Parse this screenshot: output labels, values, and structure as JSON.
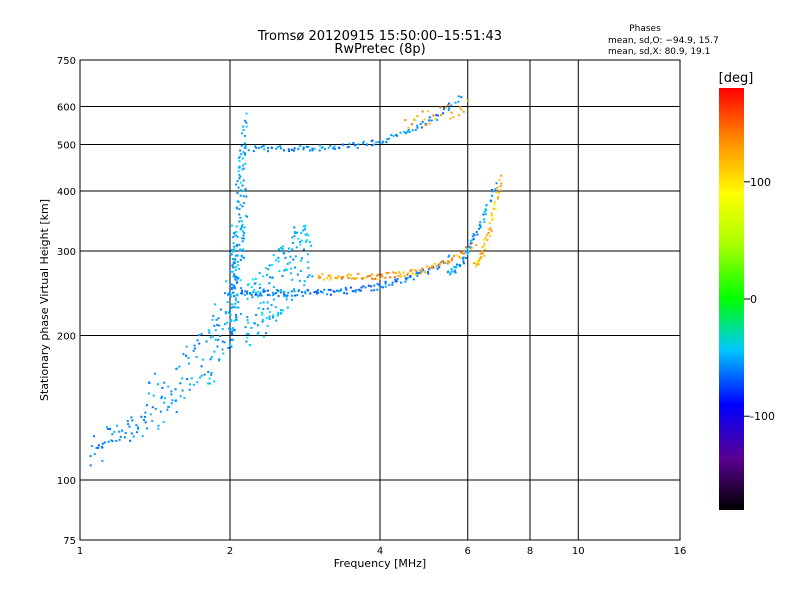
{
  "chart_data": {
    "type": "scatter",
    "title": "Tromsø 20120915 15:50:00–15:51:43",
    "subtitle": "RwPretec (8p)",
    "xlabel": "Frequency [MHz]",
    "ylabel": "Stationary phase Virtual Height [km]",
    "x_scale": "log",
    "y_scale": "log",
    "xlim": [
      1,
      16
    ],
    "ylim": [
      75,
      750
    ],
    "x_ticks": [
      1,
      2,
      4,
      6,
      8,
      10,
      16
    ],
    "y_ticks": [
      75,
      100,
      200,
      300,
      400,
      500,
      600,
      750
    ],
    "grid": true,
    "stats": {
      "heading": "Phases",
      "line_o": "mean, sd,O: −94.9, 15.7",
      "line_x": "mean, sd,X:  80.9, 19.1"
    },
    "colorbar": {
      "label": "[deg]",
      "range": [
        -180,
        180
      ],
      "ticks": [
        100,
        0,
        -100
      ]
    },
    "traces": [
      {
        "x_start": 1.05,
        "x_end": 1.35,
        "y_start": 108,
        "y_end": 140,
        "phase": -105,
        "count": 45
      },
      {
        "x_start": 1.35,
        "x_end": 1.8,
        "y_start": 120,
        "y_end": 210,
        "phase": -100,
        "count": 70
      },
      {
        "x_start": 1.8,
        "x_end": 2.1,
        "y_start": 150,
        "y_end": 300,
        "phase": -98,
        "count": 70
      },
      {
        "x_start": 2.0,
        "x_end": 2.15,
        "y_start": 170,
        "y_end": 600,
        "phase": -95,
        "count": 170
      },
      {
        "x_start": 2.15,
        "x_end": 2.9,
        "y_start": 180,
        "y_end": 360,
        "phase": -92,
        "count": 160
      },
      {
        "x_start": 2.1,
        "x_end": 5.5,
        "y_start": 245,
        "y_end": 290,
        "phase": -110,
        "count": 130,
        "shape": "o-trace-low"
      },
      {
        "x_start": 2.2,
        "x_end": 5.8,
        "y_start": 490,
        "y_end": 630,
        "phase": -105,
        "count": 110,
        "shape": "o-trace-high"
      },
      {
        "x_start": 3.0,
        "x_end": 6.2,
        "y_start": 265,
        "y_end": 310,
        "phase": 100,
        "count": 100,
        "shape": "x-trace-low"
      },
      {
        "x_start": 5.5,
        "x_end": 6.8,
        "y_start": 270,
        "y_end": 410,
        "phase": -100,
        "count": 60,
        "shape": "o-cusp"
      },
      {
        "x_start": 6.2,
        "x_end": 7.0,
        "y_start": 280,
        "y_end": 430,
        "phase": 90,
        "count": 50,
        "shape": "x-cusp"
      },
      {
        "x_start": 4.5,
        "x_end": 6.0,
        "y_start": 540,
        "y_end": 620,
        "phase": 100,
        "count": 25
      }
    ]
  }
}
